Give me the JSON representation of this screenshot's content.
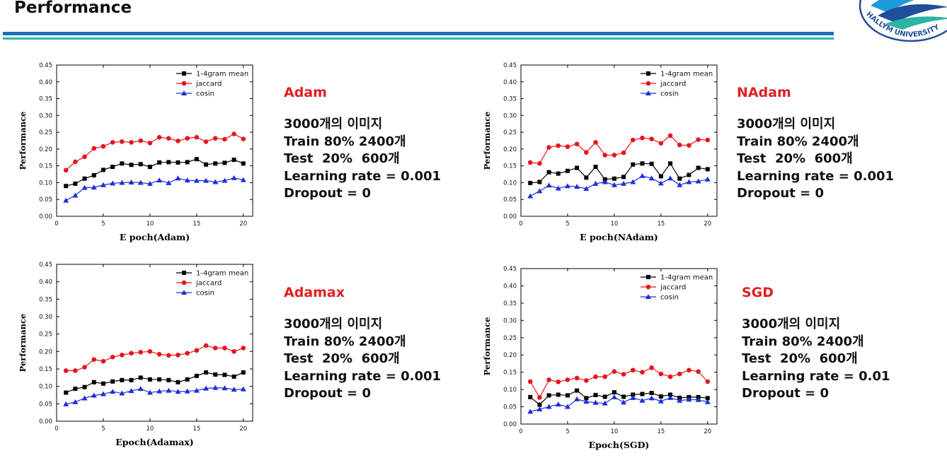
{
  "page": {
    "title": "Performance"
  },
  "logo": {
    "text": "HALLYM UNIVERSITY"
  },
  "colors": {
    "accent": "#e02020",
    "series": [
      "#000000",
      "#e8141c",
      "#1a2fd6"
    ]
  },
  "panels": [
    {
      "optimizer": "Adam",
      "lines": [
        "3000개의 이미지",
        "Train 80% 2400개",
        "Test  20%  600개",
        "Learning rate = 0.001",
        "Dropout = 0"
      ]
    },
    {
      "optimizer": "NAdam",
      "lines": [
        "3000개의 이미지",
        "Train 80% 2400개",
        "Test  20%  600개",
        "Learning rate = 0.001",
        "Dropout = 0"
      ]
    },
    {
      "optimizer": "Adamax",
      "lines": [
        "3000개의 이미지",
        "Train 80% 2400개",
        "Test  20%  600개",
        "Learning rate = 0.001",
        "Dropout = 0"
      ]
    },
    {
      "optimizer": "SGD",
      "lines": [
        "3000개의 이미지",
        "Train 80% 2400개",
        "Test  20%  600개",
        "Learning rate = 0.01",
        "Dropout = 0"
      ]
    }
  ],
  "chart_data": [
    {
      "type": "line",
      "xlabel": "E poch(Adam)",
      "ylabel": "Performance",
      "xlim": [
        0,
        21
      ],
      "ylim": [
        0,
        0.45
      ],
      "xticks": [
        0,
        5,
        10,
        15,
        20
      ],
      "yticks": [
        "0.00",
        "0.05",
        "0.10",
        "0.15",
        "0.20",
        "0.25",
        "0.30",
        "0.35",
        "0.40",
        "0.45"
      ],
      "legend": "top-right",
      "x": [
        1,
        2,
        3,
        4,
        5,
        6,
        7,
        8,
        9,
        10,
        11,
        12,
        13,
        14,
        15,
        16,
        17,
        18,
        19,
        20
      ],
      "series": [
        {
          "name": "1-4gram mean",
          "marker": "square",
          "values": [
            0.09,
            0.097,
            0.112,
            0.122,
            0.138,
            0.147,
            0.157,
            0.153,
            0.155,
            0.147,
            0.16,
            0.161,
            0.16,
            0.161,
            0.17,
            0.154,
            0.157,
            0.159,
            0.168,
            0.157
          ]
        },
        {
          "name": "jaccard",
          "marker": "circle",
          "values": [
            0.137,
            0.162,
            0.177,
            0.202,
            0.208,
            0.22,
            0.222,
            0.22,
            0.225,
            0.218,
            0.235,
            0.232,
            0.224,
            0.232,
            0.235,
            0.222,
            0.232,
            0.229,
            0.245,
            0.23
          ]
        },
        {
          "name": "cosin",
          "marker": "triangle",
          "values": [
            0.047,
            0.062,
            0.085,
            0.086,
            0.093,
            0.098,
            0.1,
            0.101,
            0.1,
            0.097,
            0.107,
            0.099,
            0.113,
            0.107,
            0.106,
            0.106,
            0.102,
            0.106,
            0.114,
            0.108
          ]
        }
      ]
    },
    {
      "type": "line",
      "xlabel": "E poch(NAdam)",
      "ylabel": "Performance",
      "xlim": [
        0,
        21
      ],
      "ylim": [
        0,
        0.45
      ],
      "xticks": [
        0,
        5,
        10,
        15,
        20
      ],
      "yticks": [
        "0.00",
        "0.05",
        "0.10",
        "0.15",
        "0.20",
        "0.25",
        "0.30",
        "0.35",
        "0.40",
        "0.45"
      ],
      "legend": "top-right",
      "x": [
        1,
        2,
        3,
        4,
        5,
        6,
        7,
        8,
        9,
        10,
        11,
        12,
        13,
        14,
        15,
        16,
        17,
        18,
        19,
        20
      ],
      "series": [
        {
          "name": "1-4gram mean",
          "marker": "square",
          "values": [
            0.099,
            0.102,
            0.131,
            0.127,
            0.135,
            0.144,
            0.115,
            0.147,
            0.11,
            0.112,
            0.117,
            0.154,
            0.157,
            0.156,
            0.119,
            0.157,
            0.112,
            0.123,
            0.144,
            0.14
          ]
        },
        {
          "name": "jaccard",
          "marker": "circle",
          "values": [
            0.16,
            0.157,
            0.205,
            0.21,
            0.207,
            0.215,
            0.19,
            0.22,
            0.182,
            0.182,
            0.189,
            0.227,
            0.233,
            0.23,
            0.217,
            0.24,
            0.212,
            0.211,
            0.228,
            0.227
          ]
        },
        {
          "name": "cosin",
          "marker": "triangle",
          "values": [
            0.06,
            0.075,
            0.092,
            0.083,
            0.09,
            0.088,
            0.082,
            0.097,
            0.102,
            0.093,
            0.097,
            0.102,
            0.12,
            0.113,
            0.098,
            0.113,
            0.093,
            0.102,
            0.104,
            0.11
          ]
        }
      ]
    },
    {
      "type": "line",
      "xlabel": "Epoch(Adamax)",
      "ylabel": "Performance",
      "xlim": [
        0,
        21
      ],
      "ylim": [
        0,
        0.45
      ],
      "xticks": [
        0,
        5,
        10,
        15,
        20
      ],
      "yticks": [
        "0.00",
        "0.05",
        "0.10",
        "0.15",
        "0.20",
        "0.25",
        "0.30",
        "0.35",
        "0.40",
        "0.45"
      ],
      "legend": "top-right",
      "x": [
        1,
        2,
        3,
        4,
        5,
        6,
        7,
        8,
        9,
        10,
        11,
        12,
        13,
        14,
        15,
        16,
        17,
        18,
        19,
        20
      ],
      "series": [
        {
          "name": "1-4gram mean",
          "marker": "square",
          "values": [
            0.082,
            0.093,
            0.098,
            0.112,
            0.108,
            0.114,
            0.118,
            0.118,
            0.125,
            0.12,
            0.12,
            0.118,
            0.112,
            0.12,
            0.13,
            0.14,
            0.134,
            0.133,
            0.128,
            0.14
          ]
        },
        {
          "name": "jaccard",
          "marker": "circle",
          "values": [
            0.145,
            0.145,
            0.155,
            0.177,
            0.172,
            0.184,
            0.19,
            0.195,
            0.198,
            0.2,
            0.192,
            0.189,
            0.19,
            0.195,
            0.203,
            0.217,
            0.21,
            0.21,
            0.2,
            0.21
          ]
        },
        {
          "name": "cosin",
          "marker": "triangle",
          "values": [
            0.049,
            0.055,
            0.066,
            0.074,
            0.078,
            0.085,
            0.08,
            0.087,
            0.093,
            0.082,
            0.086,
            0.088,
            0.085,
            0.086,
            0.088,
            0.094,
            0.096,
            0.095,
            0.091,
            0.092
          ]
        }
      ]
    },
    {
      "type": "line",
      "xlabel": "Epoch(SGD)",
      "ylabel": "Performance",
      "xlim": [
        0,
        21
      ],
      "ylim": [
        0,
        0.45
      ],
      "xticks": [
        0,
        5,
        10,
        15,
        20
      ],
      "yticks": [
        "0.00",
        "0.05",
        "0.10",
        "0.15",
        "0.20",
        "0.25",
        "0.30",
        "0.35",
        "0.40",
        "0.45"
      ],
      "legend": "top-right",
      "x": [
        1,
        2,
        3,
        4,
        5,
        6,
        7,
        8,
        9,
        10,
        11,
        12,
        13,
        14,
        15,
        16,
        17,
        18,
        19,
        20
      ],
      "series": [
        {
          "name": "1-4gram mean",
          "marker": "square",
          "values": [
            0.078,
            0.056,
            0.083,
            0.085,
            0.083,
            0.097,
            0.075,
            0.084,
            0.079,
            0.092,
            0.079,
            0.085,
            0.087,
            0.09,
            0.08,
            0.085,
            0.076,
            0.078,
            0.078,
            0.075
          ]
        },
        {
          "name": "jaccard",
          "marker": "circle",
          "values": [
            0.123,
            0.077,
            0.128,
            0.122,
            0.128,
            0.133,
            0.126,
            0.137,
            0.137,
            0.152,
            0.144,
            0.156,
            0.15,
            0.163,
            0.145,
            0.137,
            0.145,
            0.156,
            0.152,
            0.123
          ]
        },
        {
          "name": "cosin",
          "marker": "triangle",
          "values": [
            0.036,
            0.043,
            0.05,
            0.057,
            0.05,
            0.072,
            0.065,
            0.062,
            0.06,
            0.078,
            0.063,
            0.076,
            0.068,
            0.075,
            0.066,
            0.076,
            0.068,
            0.071,
            0.07,
            0.064
          ]
        }
      ]
    }
  ]
}
